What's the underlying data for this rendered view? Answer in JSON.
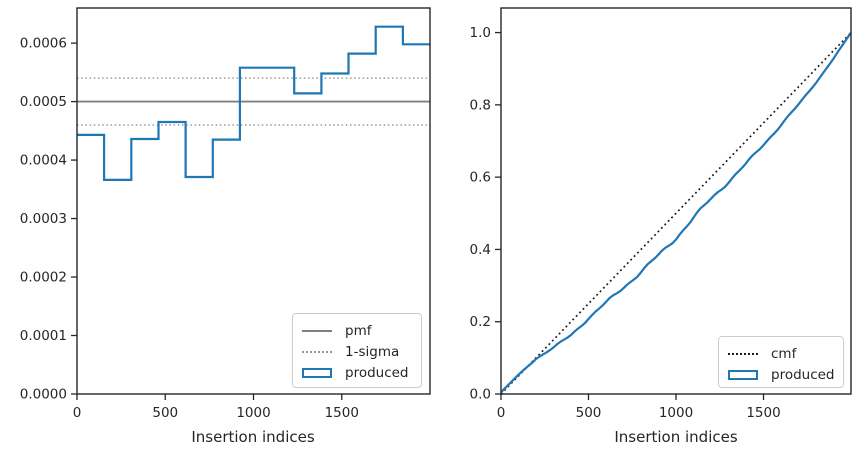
{
  "figure": {
    "background": "#ffffff",
    "text_color": "#262626",
    "axes_edge_color": "#262626",
    "produced_color": "#1f77b4",
    "pmf_color": "#808080",
    "sigma_color": "#999999",
    "cmf_color": "#1a1a1a"
  },
  "chart_data": [
    {
      "type": "bar",
      "subtype": "step-histogram",
      "title": "",
      "xlabel": "Insertion indices",
      "ylabel": "",
      "xlim": [
        0,
        2000
      ],
      "ylim": [
        0,
        0.00066
      ],
      "grid": false,
      "xticks": {
        "values": [
          0,
          500,
          1000,
          1500
        ],
        "labels": [
          "0",
          "500",
          "1000",
          "1500"
        ]
      },
      "yticks": {
        "values": [
          0,
          0.0001,
          0.0002,
          0.0003,
          0.0004,
          0.0005,
          0.0006
        ],
        "labels": [
          "0.0000",
          "0.0001",
          "0.0002",
          "0.0003",
          "0.0004",
          "0.0005",
          "0.0006"
        ]
      },
      "reference_lines": [
        {
          "name": "pmf",
          "value": 0.0005,
          "style": "solid",
          "color": "#808080"
        },
        {
          "name": "1-sigma-upper",
          "value": 0.00054,
          "style": "dotted",
          "color": "#999999"
        },
        {
          "name": "1-sigma-lower",
          "value": 0.00046,
          "style": "dotted",
          "color": "#999999"
        }
      ],
      "series": [
        {
          "name": "produced",
          "type": "step",
          "color": "#1f77b4",
          "bin_edges": [
            0,
            153.8,
            307.7,
            461.5,
            615.4,
            769.2,
            923.1,
            1076.9,
            1230.8,
            1384.6,
            1538.5,
            1692.3,
            1846.2,
            2000
          ],
          "values": [
            0.000443,
            0.000366,
            0.000436,
            0.000465,
            0.000371,
            0.000435,
            0.000558,
            0.000558,
            0.000514,
            0.000548,
            0.000582,
            0.000628,
            0.000598
          ]
        }
      ],
      "legend": {
        "position": "lower right",
        "items": [
          {
            "label": "pmf",
            "style": "solid-line",
            "color": "#808080"
          },
          {
            "label": "1-sigma",
            "style": "dotted-line",
            "color": "#999999"
          },
          {
            "label": "produced",
            "style": "rect-outline",
            "color": "#1f77b4"
          }
        ]
      }
    },
    {
      "type": "line",
      "subtype": "cumulative",
      "title": "",
      "xlabel": "Insertion indices",
      "ylabel": "",
      "xlim": [
        0,
        2000
      ],
      "ylim": [
        0,
        1.068
      ],
      "grid": false,
      "xticks": {
        "values": [
          0,
          500,
          1000,
          1500
        ],
        "labels": [
          "0",
          "500",
          "1000",
          "1500"
        ]
      },
      "yticks": {
        "values": [
          0,
          0.2,
          0.4,
          0.6,
          0.8,
          1.0
        ],
        "labels": [
          "0.0",
          "0.2",
          "0.4",
          "0.6",
          "0.8",
          "1.0"
        ]
      },
      "series": [
        {
          "name": "cmf",
          "style": "dotted",
          "color": "#1a1a1a",
          "x": [
            0,
            2000
          ],
          "y": [
            0,
            1.0
          ]
        },
        {
          "name": "produced",
          "style": "solid",
          "wiggle": true,
          "color": "#1f77b4",
          "x": [
            0,
            100,
            200,
            300,
            400,
            500,
            600,
            700,
            800,
            900,
            1000,
            1100,
            1200,
            1300,
            1400,
            1500,
            1600,
            1700,
            1800,
            1900,
            2000
          ],
          "y": [
            0.005,
            0.053,
            0.098,
            0.128,
            0.163,
            0.21,
            0.252,
            0.295,
            0.338,
            0.383,
            0.432,
            0.487,
            0.54,
            0.588,
            0.636,
            0.69,
            0.745,
            0.8,
            0.862,
            0.928,
            1.0
          ]
        }
      ],
      "legend": {
        "position": "lower right",
        "items": [
          {
            "label": "cmf",
            "style": "dotted-line",
            "color": "#1a1a1a"
          },
          {
            "label": "produced",
            "style": "rect-outline",
            "color": "#1f77b4"
          }
        ]
      }
    }
  ]
}
